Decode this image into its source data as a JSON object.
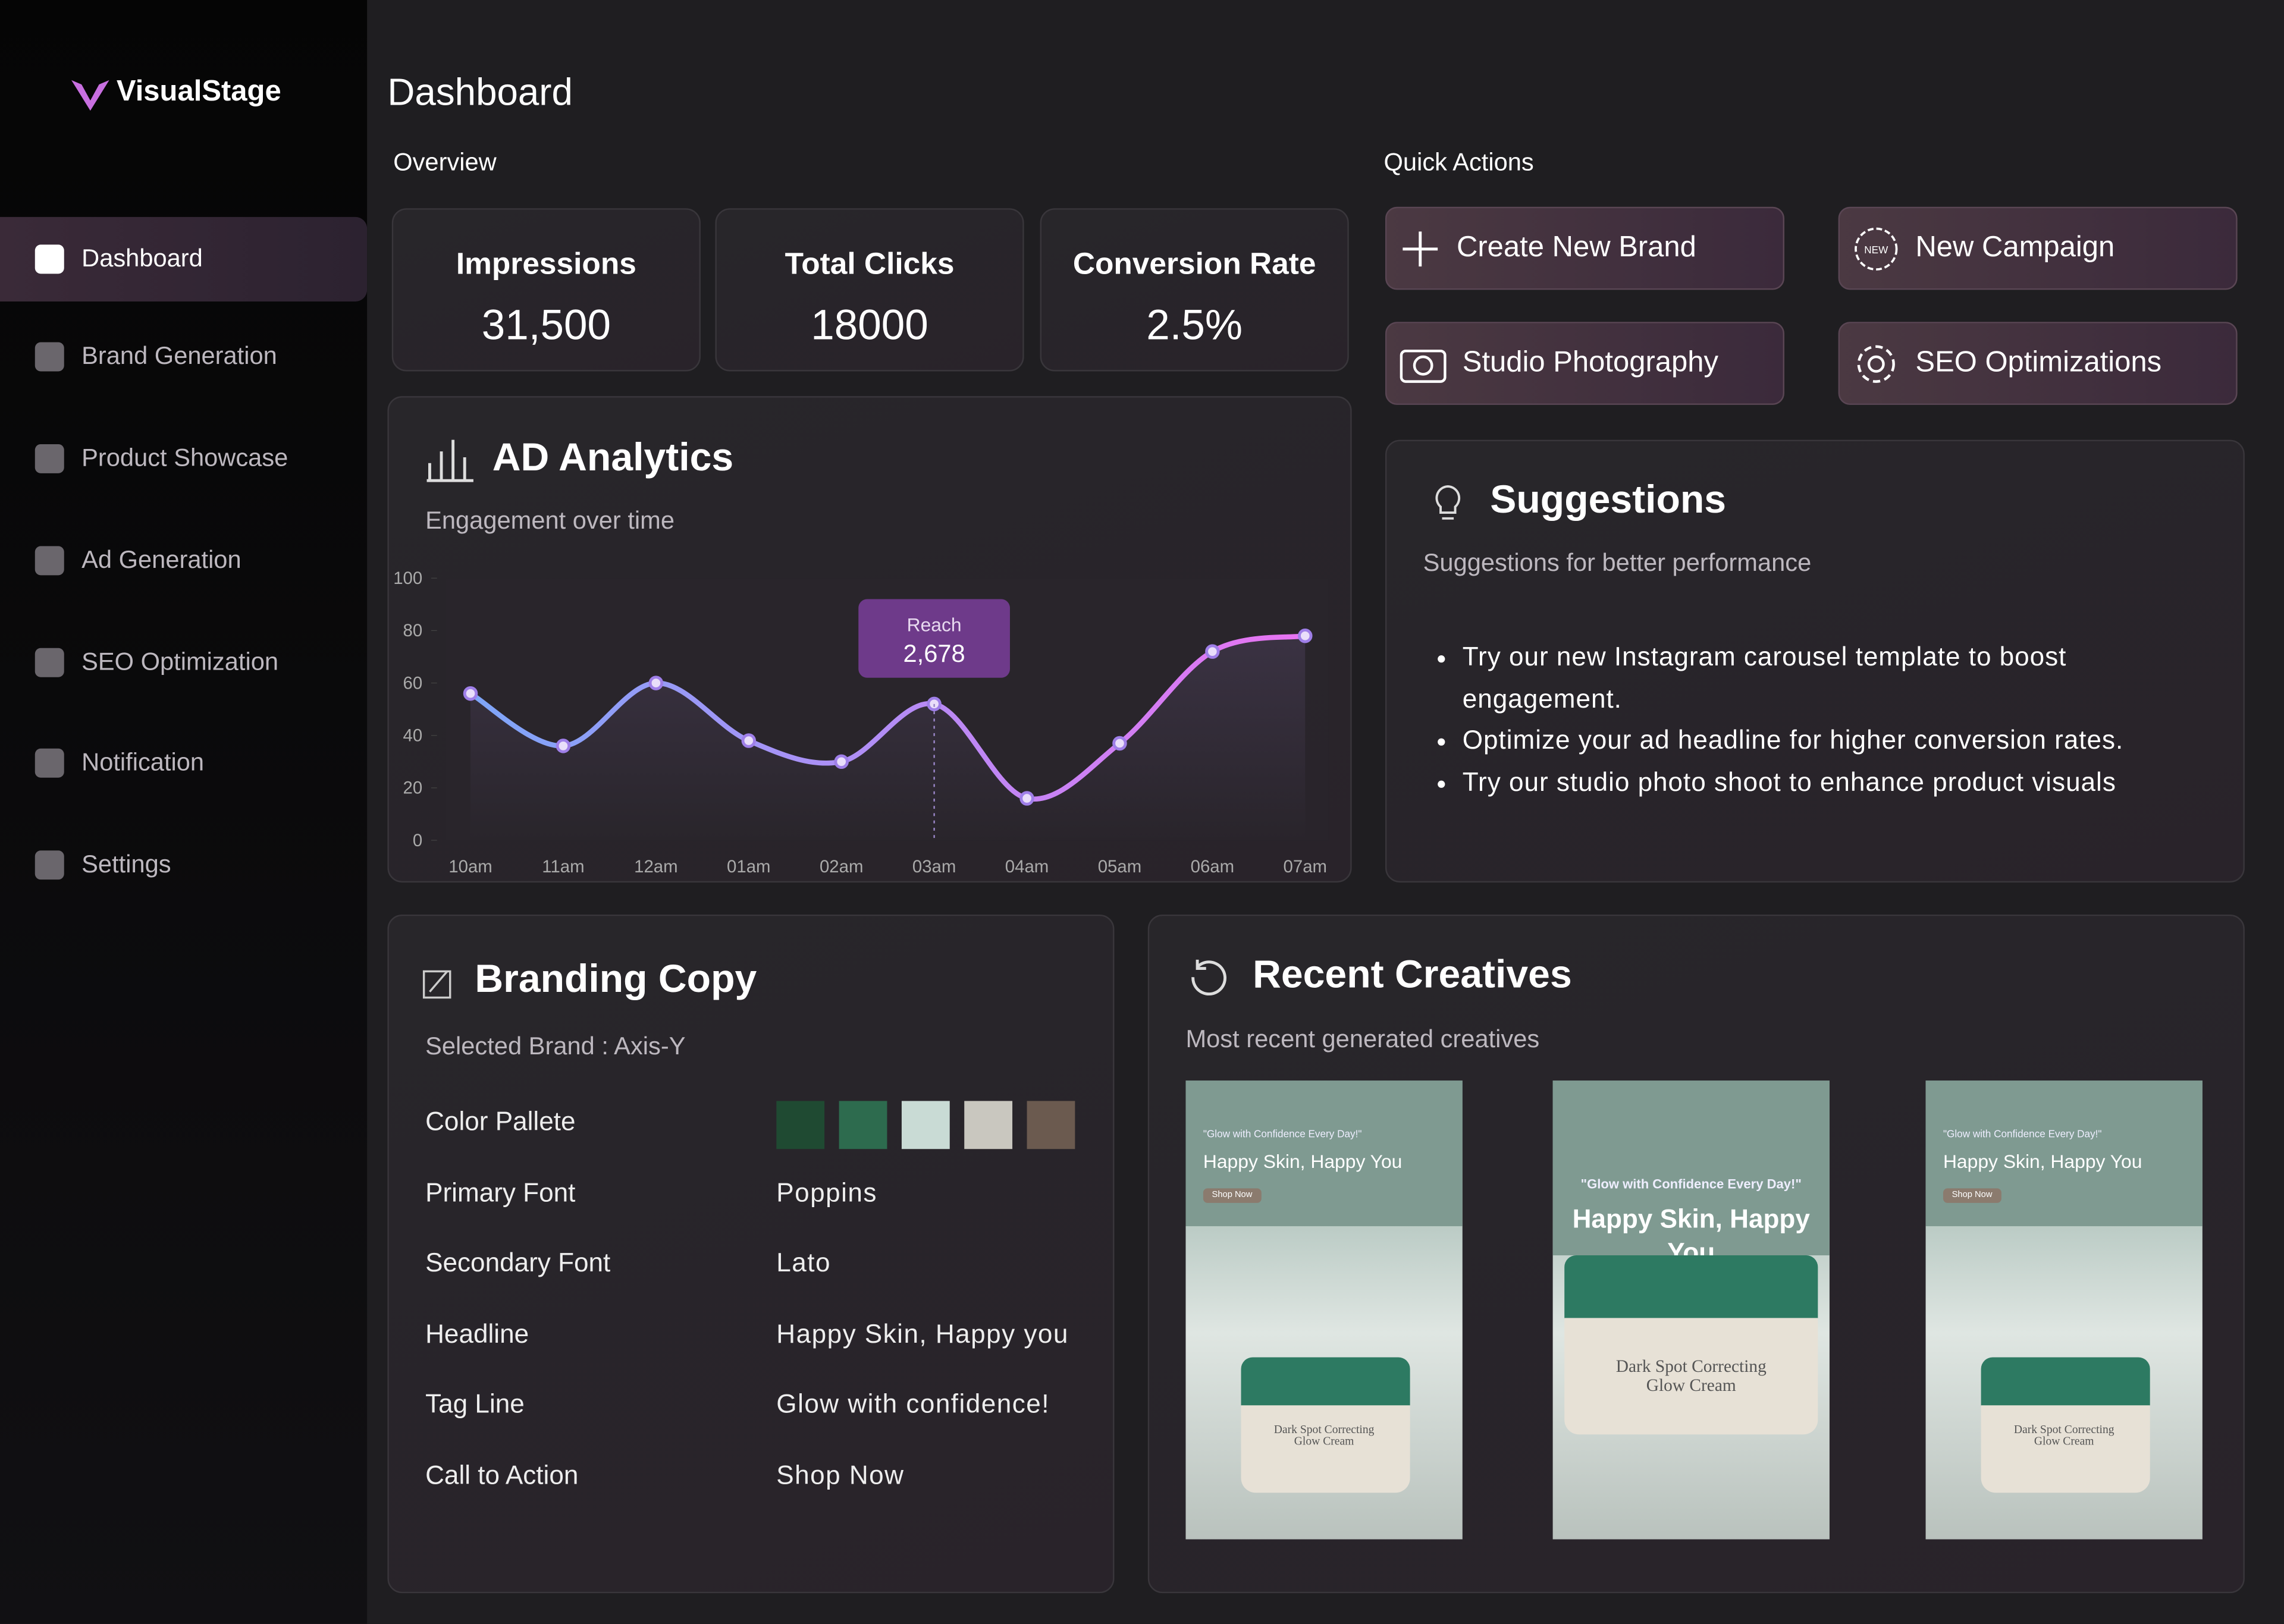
{
  "sidebar": {
    "brand": "VisualStage",
    "nav": [
      "Dashboard",
      "Brand Generation",
      "Product Showcase",
      "Ad Generation",
      "SEO Optimization",
      "Notification",
      "Settings"
    ]
  },
  "header": {
    "title": "Dashboard"
  },
  "overview": {
    "title": "Overview",
    "stats": [
      {
        "label": "Impressions",
        "value": "31,500"
      },
      {
        "label": "Total Clicks",
        "value": "18000"
      },
      {
        "label": "Conversion Rate",
        "value": "2.5%"
      }
    ]
  },
  "quick_actions": {
    "title": "Quick Actions",
    "actions": [
      "Create New Brand",
      "New Campaign",
      "Studio Photography",
      "SEO Optimizations"
    ]
  },
  "chart_data": {
    "type": "line",
    "title": "AD Analytics",
    "subtitle": "Engagement over time",
    "categories": [
      "10am",
      "11am",
      "12am",
      "01am",
      "02am",
      "03am",
      "04am",
      "05am",
      "06am",
      "07am"
    ],
    "values": [
      56,
      36,
      60,
      38,
      30,
      52,
      16,
      37,
      72,
      78
    ],
    "colors": [
      "#7ea6f8",
      "#e873f2"
    ],
    "ylim": [
      0,
      100
    ],
    "yticks": [
      0,
      20,
      40,
      60,
      80,
      100
    ],
    "tooltip": {
      "title": "Reach",
      "text": "2,678"
    }
  },
  "suggestions": {
    "title": "Suggestions",
    "subtitle": "Suggestions for better performance",
    "items": [
      "Try our new Instagram carousel template to boost engagement.",
      "Optimize your ad headline for higher conversion rates.",
      "Try our studio photo shoot to enhance product visuals"
    ]
  },
  "branding_copy": {
    "title": "Branding Copy",
    "subtitle": "Selected Brand : Axis-Y",
    "palette_label": "Color Pallete",
    "palette": [
      "#1f4a32",
      "#2d6b4e",
      "#c9dbd5",
      "#c9c7bf",
      "#6b5a4f"
    ],
    "rows": [
      {
        "label": "Primary Font",
        "value": "Poppins"
      },
      {
        "label": "Secondary Font",
        "value": "Lato"
      },
      {
        "label": "Headline",
        "value": "Happy Skin, Happy you"
      },
      {
        "label": "Tag Line",
        "value": "Glow with confidence!"
      },
      {
        "label": "Call to Action",
        "value": "Shop Now"
      }
    ]
  },
  "recent_creatives": {
    "title": "Recent Creatives",
    "subtitle": "Most recent generated creatives",
    "creatives": [
      {
        "tagline": "\"Glow with Confidence Every Day!\"",
        "headline": "Happy Skin, Happy You",
        "button": "Shop Now",
        "product": "Dark Spot Correcting Glow Cream"
      },
      {
        "tagline": "\"Glow with Confidence Every Day!\"",
        "headline": "Happy Skin, Happy You",
        "product": "Dark Spot Correcting Glow Cream"
      },
      {
        "tagline": "\"Glow with Confidence Every Day!\"",
        "headline": "Happy Skin, Happy You",
        "button": "Shop Now",
        "product": "Dark Spot Correcting Glow Cream"
      }
    ]
  }
}
